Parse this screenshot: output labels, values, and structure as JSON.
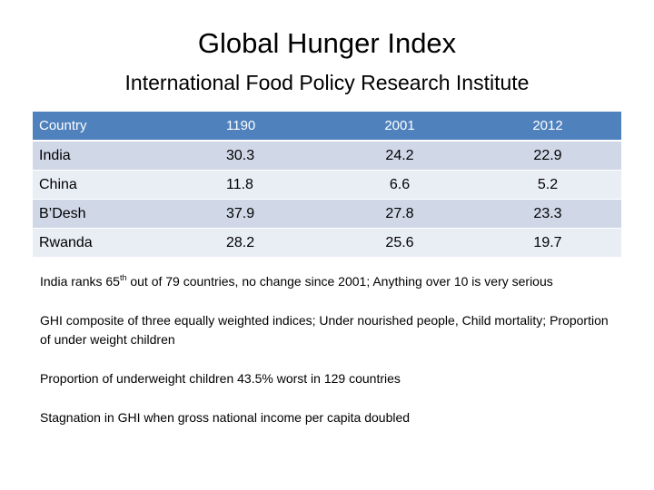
{
  "slide": {
    "title": "Global Hunger Index",
    "subtitle": "International Food Policy Research Institute"
  },
  "table": {
    "headers": [
      "Country",
      "1190",
      "2001",
      "2012"
    ],
    "rows": [
      [
        "India",
        "30.3",
        "24.2",
        "22.9"
      ],
      [
        "China",
        "11.8",
        "6.6",
        "5.2"
      ],
      [
        "B’Desh",
        "37.9",
        "27.8",
        "23.3"
      ],
      [
        "Rwanda",
        "28.2",
        "25.6",
        "19.7"
      ]
    ]
  },
  "notes": {
    "note1_prefix": "India ranks 65",
    "note1_sup": "th",
    "note1_suffix": " out of 79 countries, no change since 2001; Anything over 10 is very serious",
    "note2": "GHI composite of three equally weighted indices; Under nourished people,  Child mortality; Proportion of under weight children",
    "note3": "Proportion of underweight children 43.5% worst in 129 countries",
    "note4": "Stagnation in GHI when gross national income per capita doubled"
  },
  "colors": {
    "header_bg": "#4f81bd",
    "row_dark": "#d0d8e8",
    "row_light": "#e9edf4"
  }
}
